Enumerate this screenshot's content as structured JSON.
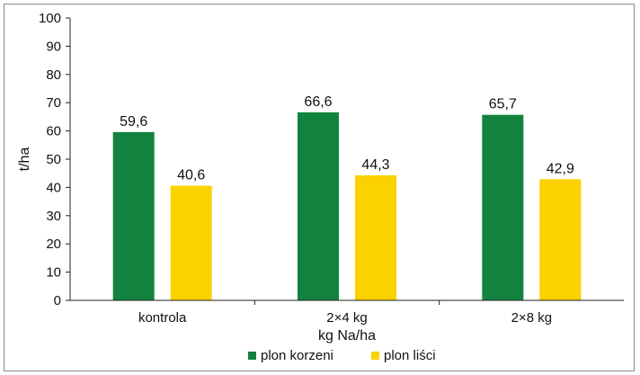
{
  "chart_data": {
    "type": "bar",
    "categories": [
      "kontrola",
      "2×4 kg",
      "2×8 kg"
    ],
    "series": [
      {
        "name": "plon korzeni",
        "values": [
          59.6,
          66.6,
          65.7
        ],
        "value_labels": [
          "59,6",
          "66,6",
          "65,7"
        ],
        "color": "#12833f"
      },
      {
        "name": "plon liści",
        "values": [
          40.6,
          44.3,
          42.9
        ],
        "value_labels": [
          "40,6",
          "44,3",
          "42,9"
        ],
        "color": "#fcd100"
      }
    ],
    "xlabel": "kg Na/ha",
    "ylabel": "t/ha",
    "ylim": [
      0,
      100
    ],
    "yticks": [
      0,
      10,
      20,
      30,
      40,
      50,
      60,
      70,
      80,
      90,
      100
    ],
    "grid": false,
    "legend": "bottom"
  }
}
